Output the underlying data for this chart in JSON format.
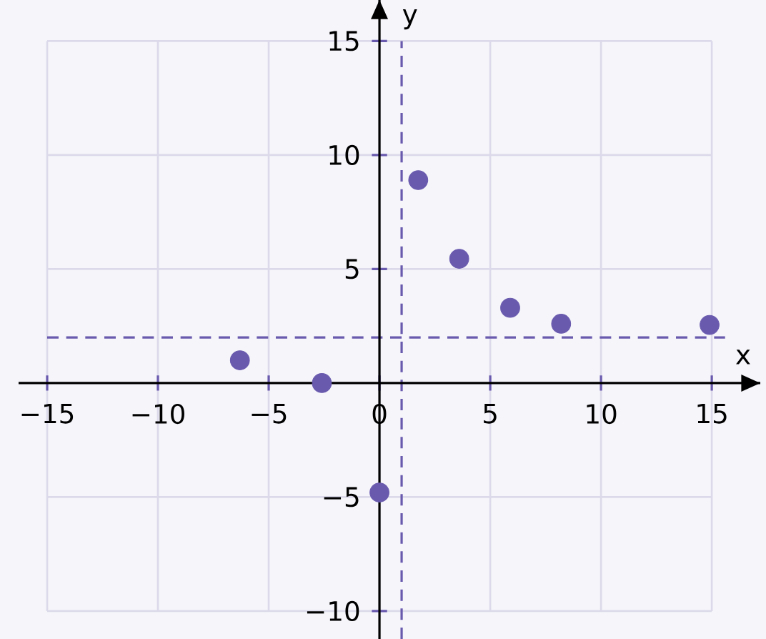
{
  "chart_data": {
    "type": "scatter",
    "xlabel": "x",
    "ylabel": "y",
    "x": [
      -6.3,
      -2.6,
      0,
      1.75,
      3.6,
      5.9,
      8.2,
      14.9
    ],
    "values": [
      1.0,
      0,
      -4.8,
      8.9,
      5.45,
      3.3,
      2.6,
      2.55
    ],
    "color": "#6a5aae",
    "xlim": [
      -15,
      15
    ],
    "ylim": [
      -10,
      15
    ],
    "xticks": [
      {
        "value": -15,
        "label": "−15"
      },
      {
        "value": -10,
        "label": "−10"
      },
      {
        "value": -5,
        "label": "−5"
      },
      0,
      5,
      10,
      15
    ],
    "yticks": [
      {
        "value": -10,
        "label": "−10"
      },
      {
        "value": -5,
        "label": "−5"
      },
      5,
      10,
      15
    ],
    "grid": true,
    "ref_lines": [
      {
        "axis": "x",
        "value": 1,
        "color": "#6a5aae",
        "line_style": "dashed"
      },
      {
        "axis": "y",
        "value": 2,
        "color": "#6a5aae",
        "line_style": "dashed"
      }
    ]
  }
}
